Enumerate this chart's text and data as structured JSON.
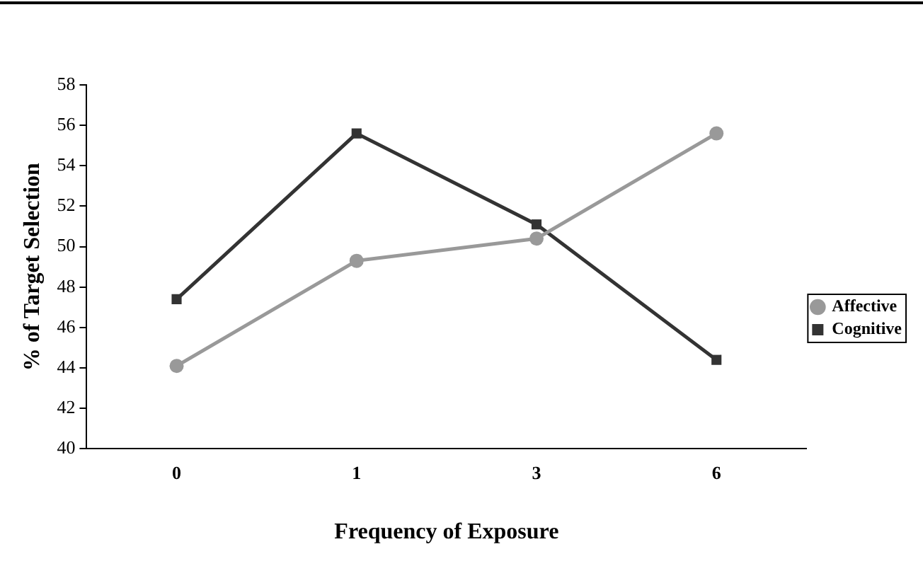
{
  "chart_data": {
    "type": "line",
    "xlabel": "Frequency of Exposure",
    "ylabel": "% of Target Selection",
    "categories": [
      "0",
      "1",
      "3",
      "6"
    ],
    "series": [
      {
        "name": "Affective",
        "color": "#999999",
        "marker": "circle",
        "values": [
          44.1,
          49.3,
          50.4,
          55.6
        ]
      },
      {
        "name": "Cognitive",
        "color": "#333333",
        "marker": "square",
        "values": [
          47.4,
          55.6,
          51.1,
          44.4
        ]
      }
    ],
    "ylim": [
      40,
      58
    ],
    "yticks": [
      40,
      42,
      44,
      46,
      48,
      50,
      52,
      54,
      56,
      58
    ],
    "grid": false,
    "legend": "right"
  }
}
